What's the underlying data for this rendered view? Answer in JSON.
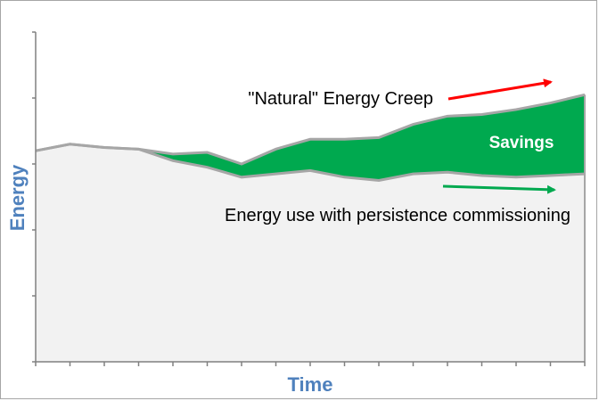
{
  "chart_data": {
    "type": "area",
    "xlabel": "Time",
    "ylabel": "Energy",
    "x": [
      0,
      1,
      2,
      3,
      4,
      5,
      6,
      7,
      8,
      9,
      10,
      11,
      12,
      13,
      14,
      15,
      16
    ],
    "series": [
      {
        "name": "Energy use with persistence commissioning",
        "values": [
          0.64,
          0.66,
          0.65,
          0.645,
          0.61,
          0.59,
          0.56,
          0.57,
          0.58,
          0.56,
          0.55,
          0.57,
          0.575,
          0.565,
          0.56,
          0.565,
          0.57
        ]
      },
      {
        "name": "\"Natural\" Energy Creep",
        "values": [
          0.64,
          0.66,
          0.65,
          0.645,
          0.63,
          0.635,
          0.6,
          0.645,
          0.675,
          0.675,
          0.68,
          0.72,
          0.745,
          0.75,
          0.765,
          0.785,
          0.81
        ]
      }
    ],
    "fill_label": "Savings",
    "ylim": [
      0,
      1
    ],
    "grid": false,
    "colors": {
      "baseline_fill": "#f2f2f2",
      "line": "#a6a6a6",
      "savings_fill": "#00a94f",
      "creep_arrow": "#ff0000",
      "persistence_arrow": "#00a94f",
      "axis_title": "#4f81bd"
    }
  }
}
